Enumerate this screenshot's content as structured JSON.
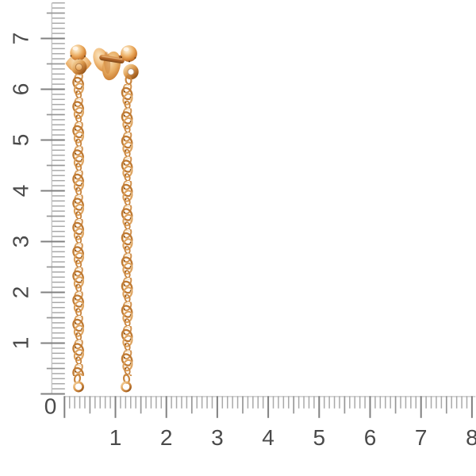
{
  "photo": {
    "subject": "Pair of rose-gold stud earrings with long twisted chain drops ending in small rings",
    "background": "#ffffff"
  },
  "rulers": {
    "vertical": {
      "labels": [
        "1",
        "2",
        "3",
        "4",
        "5",
        "6",
        "7"
      ]
    },
    "horizontal": {
      "labels": [
        "1",
        "2",
        "3",
        "4",
        "5",
        "6",
        "7",
        "8"
      ]
    },
    "origin_label": "0",
    "minor_divisions_per_unit": 10
  },
  "colors": {
    "tick_minor": "#a9a9a9",
    "tick_medium": "#979797",
    "tick_major": "#818181",
    "ruler_baseline": "#bebebe",
    "label_text": "#4a4a4a",
    "gold_highlight": "#fdf3e3",
    "gold_light": "#f3c488",
    "gold_mid": "#dd9c50",
    "gold_deep": "#b06a28",
    "gold_shadow": "#6f3e10"
  }
}
